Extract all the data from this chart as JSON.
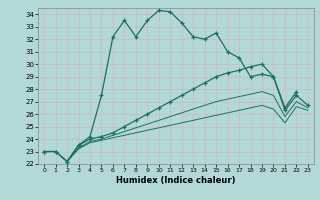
{
  "title": "",
  "xlabel": "Humidex (Indice chaleur)",
  "background_color": "#b2d8d8",
  "grid_color": "#d4b8b8",
  "line_color": "#1a7060",
  "xlim": [
    -0.5,
    23.5
  ],
  "ylim": [
    22,
    34.5
  ],
  "yticks": [
    22,
    23,
    24,
    25,
    26,
    27,
    28,
    29,
    30,
    31,
    32,
    33,
    34
  ],
  "xticks": [
    0,
    1,
    2,
    3,
    4,
    5,
    6,
    7,
    8,
    9,
    10,
    11,
    12,
    13,
    14,
    15,
    16,
    17,
    18,
    19,
    20,
    21,
    22,
    23
  ],
  "series1_x": [
    0,
    1,
    2,
    3,
    4,
    5,
    6,
    7,
    8,
    9,
    10,
    11,
    12,
    13,
    14,
    15,
    16,
    17,
    18,
    19,
    20,
    21,
    22
  ],
  "series1_y": [
    23.0,
    23.0,
    22.2,
    23.5,
    24.2,
    27.5,
    32.2,
    33.5,
    32.2,
    33.5,
    34.3,
    34.2,
    33.3,
    32.2,
    32.0,
    32.5,
    31.0,
    30.5,
    29.0,
    29.2,
    29.0,
    26.5,
    27.8
  ],
  "series2_x": [
    0,
    1,
    2,
    3,
    4,
    5,
    6,
    7,
    8,
    9,
    10,
    11,
    12,
    13,
    14,
    15,
    16,
    17,
    18,
    19,
    20,
    21,
    22,
    23
  ],
  "series2_y": [
    23.0,
    23.0,
    22.2,
    23.5,
    24.0,
    24.2,
    24.5,
    25.0,
    25.5,
    26.0,
    26.5,
    27.0,
    27.5,
    28.0,
    28.5,
    29.0,
    29.3,
    29.5,
    29.8,
    30.0,
    29.0,
    26.3,
    27.5,
    26.7
  ],
  "series3_x": [
    0,
    1,
    2,
    3,
    4,
    5,
    6,
    7,
    8,
    9,
    10,
    11,
    12,
    13,
    14,
    15,
    16,
    17,
    18,
    19,
    20,
    21,
    22,
    23
  ],
  "series3_y": [
    23.0,
    23.0,
    22.2,
    23.3,
    23.8,
    24.0,
    24.3,
    24.6,
    24.9,
    25.2,
    25.5,
    25.8,
    26.1,
    26.4,
    26.7,
    27.0,
    27.2,
    27.4,
    27.6,
    27.8,
    27.5,
    25.8,
    27.0,
    26.5
  ],
  "series4_x": [
    0,
    1,
    2,
    3,
    4,
    5,
    6,
    7,
    8,
    9,
    10,
    11,
    12,
    13,
    14,
    15,
    16,
    17,
    18,
    19,
    20,
    21,
    22,
    23
  ],
  "series4_y": [
    23.0,
    23.0,
    22.2,
    23.2,
    23.7,
    23.9,
    24.1,
    24.3,
    24.5,
    24.7,
    24.9,
    25.1,
    25.3,
    25.5,
    25.7,
    25.9,
    26.1,
    26.3,
    26.5,
    26.7,
    26.4,
    25.3,
    26.6,
    26.3
  ]
}
